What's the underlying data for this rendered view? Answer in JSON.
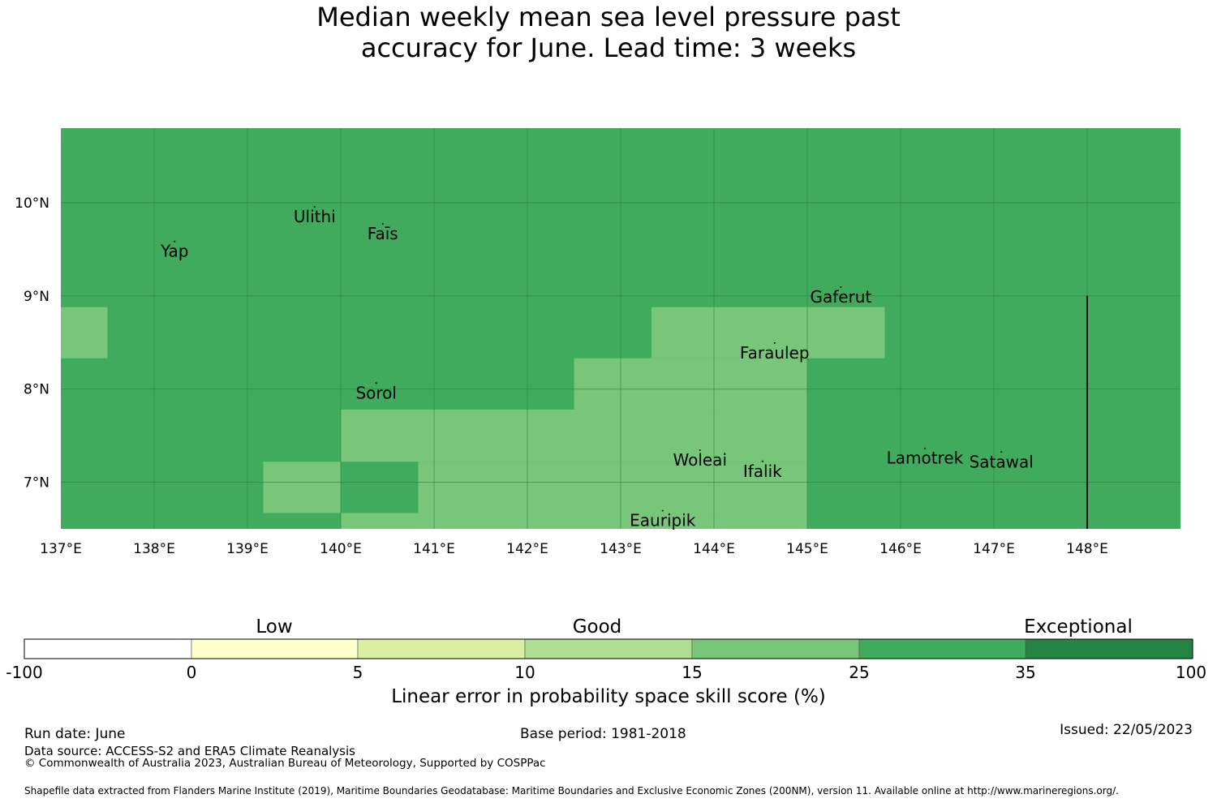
{
  "title": {
    "line1": "Median weekly mean sea level pressure past",
    "line2": "accuracy for June. Lead time: 3 weeks"
  },
  "map": {
    "lon_range": [
      137.0,
      149.0
    ],
    "lat_range": [
      6.5,
      10.8
    ],
    "x_ticks": [
      "137°E",
      "138°E",
      "139°E",
      "140°E",
      "141°E",
      "142°E",
      "143°E",
      "144°E",
      "145°E",
      "146°E",
      "147°E",
      "148°E"
    ],
    "y_ticks": [
      "10°N",
      "9°N",
      "8°N",
      "7°N"
    ],
    "base_color": "#41ab5d",
    "colors": {
      "cat_15_25": "#78c679",
      "grid": "#2a7a3f",
      "boundary": "#000000"
    },
    "cells_15_25": [
      {
        "lon": [
          137.0,
          137.5
        ],
        "lat": [
          8.33,
          8.88
        ]
      },
      {
        "lon": [
          143.33,
          145.83
        ],
        "lat": [
          8.33,
          8.88
        ]
      },
      {
        "lon": [
          142.5,
          145.0
        ],
        "lat": [
          7.78,
          8.33
        ]
      },
      {
        "lon": [
          140.0,
          145.0
        ],
        "lat": [
          7.22,
          7.78
        ]
      },
      {
        "lon": [
          139.17,
          140.0
        ],
        "lat": [
          6.67,
          7.22
        ]
      },
      {
        "lon": [
          140.83,
          145.0
        ],
        "lat": [
          6.67,
          7.22
        ]
      },
      {
        "lon": [
          140.0,
          145.0
        ],
        "lat": [
          6.5,
          6.67
        ]
      }
    ],
    "boundary_line": {
      "lon": 148.0,
      "lat": [
        6.5,
        9.0
      ]
    },
    "places": [
      {
        "name": "Ulithi",
        "lon": 139.72,
        "lat": 9.85
      },
      {
        "name": "Faīs",
        "lon": 140.45,
        "lat": 9.67
      },
      {
        "name": "Yap",
        "lon": 138.22,
        "lat": 9.48
      },
      {
        "name": "Gaferut",
        "lon": 145.36,
        "lat": 8.99
      },
      {
        "name": "Faraulep",
        "lon": 144.65,
        "lat": 8.39
      },
      {
        "name": "Sorol",
        "lon": 140.38,
        "lat": 7.96
      },
      {
        "name": "Woleai",
        "lon": 143.85,
        "lat": 7.24
      },
      {
        "name": "Ifalik",
        "lon": 144.52,
        "lat": 7.12
      },
      {
        "name": "Lamotrek",
        "lon": 146.26,
        "lat": 7.26
      },
      {
        "name": "Satawal",
        "lon": 147.08,
        "lat": 7.22
      },
      {
        "name": "Eauripik",
        "lon": 143.45,
        "lat": 6.59
      }
    ]
  },
  "colorbar": {
    "categories": [
      "Low",
      "Good",
      "Exceptional"
    ],
    "ticks": [
      "-100",
      "0",
      "5",
      "10",
      "15",
      "25",
      "35",
      "100"
    ],
    "colors": [
      "#ffffff",
      "#ffffcc",
      "#d9f0a3",
      "#addd8e",
      "#78c679",
      "#41ab5d",
      "#238443"
    ],
    "label": "Linear error in probability space skill score (%)"
  },
  "footer": {
    "run_date": "Run date: June",
    "base_period": "Base period: 1981-2018",
    "issued": "Issued: 22/05/2023",
    "data_source": "Data source: ACCESS-S2 and ERA5 Climate Reanalysis",
    "copyright": "© Commonwealth of Australia 2023, Australian Bureau of Meteorology, Supported by COSPPac",
    "shapefile": "Shapefile data extracted from Flanders Marine Institute (2019), Maritime Boundaries Geodatabase: Maritime Boundaries and Exclusive Economic Zones (200NM), version 11. Available online at http://www.marineregions.org/."
  }
}
